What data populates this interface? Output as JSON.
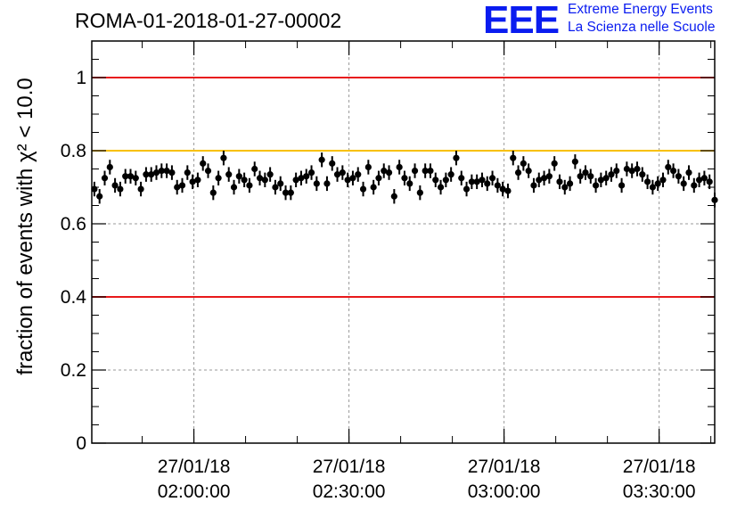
{
  "header": {
    "title": "ROMA-01-2018-01-27-00002",
    "logo_mark": "EEE",
    "logo_line1": "Extreme Energy Events",
    "logo_line2": "La Scienza nelle Scuole"
  },
  "chart_data": {
    "type": "scatter",
    "title": "ROMA-01-2018-01-27-00002",
    "ylabel": "fraction of events with χ² < 10.0",
    "xlabel": "",
    "x_range": [
      "27/01/18 01:40:15",
      "27/01/18 03:40:45"
    ],
    "ylim": [
      0,
      1.1
    ],
    "y_ticks": [
      0,
      0.2,
      0.4,
      0.6,
      0.8,
      1
    ],
    "x_ticks": [
      {
        "date": "27/01/18",
        "time": "02:00:00"
      },
      {
        "date": "27/01/18",
        "time": "02:30:00"
      },
      {
        "date": "27/01/18",
        "time": "03:00:00"
      },
      {
        "date": "27/01/18",
        "time": "03:30:00"
      }
    ],
    "grid": true,
    "reference_lines": [
      {
        "y": 1.0,
        "color": "#e8191b"
      },
      {
        "y": 0.8,
        "color": "#f8c000"
      },
      {
        "y": 0.4,
        "color": "#e8191b"
      }
    ],
    "point_color": "#000000",
    "x_start": "27/01/18 01:40:45",
    "x_step_seconds": 60,
    "y_error": 0.02,
    "values": [
      0.695,
      0.675,
      0.725,
      0.755,
      0.705,
      0.695,
      0.73,
      0.73,
      0.725,
      0.695,
      0.735,
      0.735,
      0.74,
      0.745,
      0.745,
      0.74,
      0.7,
      0.705,
      0.74,
      0.715,
      0.72,
      0.765,
      0.745,
      0.685,
      0.725,
      0.78,
      0.735,
      0.7,
      0.73,
      0.72,
      0.705,
      0.75,
      0.725,
      0.72,
      0.735,
      0.7,
      0.71,
      0.685,
      0.685,
      0.72,
      0.725,
      0.73,
      0.74,
      0.71,
      0.775,
      0.71,
      0.765,
      0.735,
      0.74,
      0.72,
      0.725,
      0.735,
      0.695,
      0.755,
      0.7,
      0.725,
      0.745,
      0.74,
      0.675,
      0.755,
      0.725,
      0.71,
      0.745,
      0.685,
      0.745,
      0.745,
      0.72,
      0.7,
      0.72,
      0.735,
      0.78,
      0.725,
      0.695,
      0.715,
      0.715,
      0.72,
      0.71,
      0.725,
      0.705,
      0.695,
      0.69,
      0.78,
      0.74,
      0.765,
      0.745,
      0.705,
      0.72,
      0.725,
      0.73,
      0.765,
      0.715,
      0.7,
      0.71,
      0.77,
      0.73,
      0.74,
      0.73,
      0.705,
      0.72,
      0.725,
      0.735,
      0.745,
      0.705,
      0.75,
      0.745,
      0.75,
      0.735,
      0.715,
      0.7,
      0.71,
      0.72,
      0.755,
      0.745,
      0.73,
      0.71,
      0.74,
      0.705,
      0.72,
      0.725,
      0.715,
      0.665
    ]
  }
}
